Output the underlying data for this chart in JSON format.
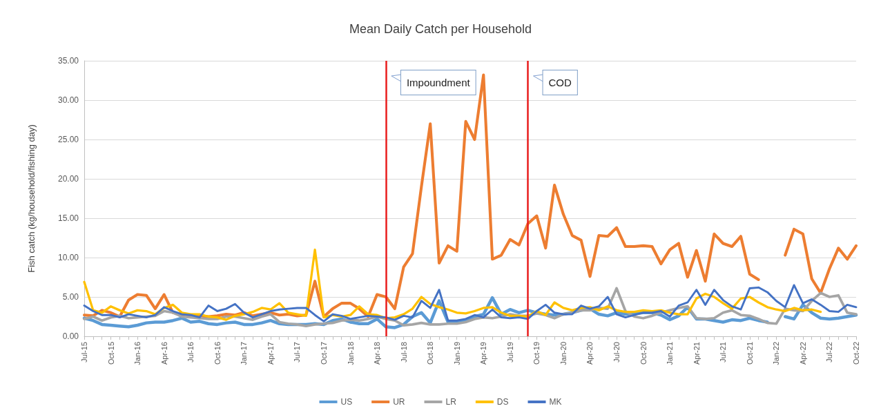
{
  "chart_data": {
    "type": "line",
    "title": "Mean Daily Catch per Household",
    "ylabel": "Fish catch (kg/household/fishing day)",
    "x": [
      "2015-07",
      "2015-08",
      "2015-09",
      "2015-10",
      "2015-11",
      "2015-12",
      "2016-01",
      "2016-02",
      "2016-03",
      "2016-04",
      "2016-05",
      "2016-06",
      "2016-07",
      "2016-08",
      "2016-09",
      "2016-10",
      "2016-11",
      "2016-12",
      "2017-01",
      "2017-02",
      "2017-03",
      "2017-04",
      "2017-05",
      "2017-06",
      "2017-07",
      "2017-08",
      "2017-09",
      "2017-10",
      "2017-11",
      "2017-12",
      "2018-01",
      "2018-02",
      "2018-03",
      "2018-04",
      "2018-05",
      "2018-06",
      "2018-07",
      "2018-08",
      "2018-09",
      "2018-10",
      "2018-11",
      "2018-12",
      "2019-01",
      "2019-02",
      "2019-03",
      "2019-04",
      "2019-05",
      "2019-06",
      "2019-07",
      "2019-08",
      "2019-09",
      "2019-10",
      "2019-11",
      "2019-12",
      "2020-01",
      "2020-02",
      "2020-03",
      "2020-04",
      "2020-05",
      "2020-06",
      "2020-07",
      "2020-08",
      "2020-09",
      "2020-10",
      "2020-11",
      "2020-12",
      "2021-01",
      "2021-02",
      "2021-03",
      "2021-04",
      "2021-05",
      "2021-06",
      "2021-07",
      "2021-08",
      "2021-09",
      "2021-10",
      "2021-11",
      "2021-12",
      "2022-01",
      "2022-02",
      "2022-03",
      "2022-04",
      "2022-05",
      "2022-06",
      "2022-07",
      "2022-08",
      "2022-09",
      "2022-10"
    ],
    "xlim": [
      "2015-07",
      "2022-10"
    ],
    "xticks": [
      {
        "value": "2015-07",
        "label": "Jul-15"
      },
      {
        "value": "2015-10",
        "label": "Oct-15"
      },
      {
        "value": "2016-01",
        "label": "Jan-16"
      },
      {
        "value": "2016-04",
        "label": "Apr-16"
      },
      {
        "value": "2016-07",
        "label": "Jul-16"
      },
      {
        "value": "2016-10",
        "label": "Oct-16"
      },
      {
        "value": "2017-01",
        "label": "Jan-17"
      },
      {
        "value": "2017-04",
        "label": "Apr-17"
      },
      {
        "value": "2017-07",
        "label": "Jul-17"
      },
      {
        "value": "2017-10",
        "label": "Oct-17"
      },
      {
        "value": "2018-01",
        "label": "Jan-18"
      },
      {
        "value": "2018-04",
        "label": "Apr-18"
      },
      {
        "value": "2018-07",
        "label": "Jul-18"
      },
      {
        "value": "2018-10",
        "label": "Oct-18"
      },
      {
        "value": "2019-01",
        "label": "Jan-19"
      },
      {
        "value": "2019-04",
        "label": "Apr-19"
      },
      {
        "value": "2019-07",
        "label": "Jul-19"
      },
      {
        "value": "2019-10",
        "label": "Oct-19"
      },
      {
        "value": "2020-01",
        "label": "Jan-20"
      },
      {
        "value": "2020-04",
        "label": "Apr-20"
      },
      {
        "value": "2020-07",
        "label": "Jul-20"
      },
      {
        "value": "2020-10",
        "label": "Oct-20"
      },
      {
        "value": "2021-01",
        "label": "Jan-21"
      },
      {
        "value": "2021-04",
        "label": "Apr-21"
      },
      {
        "value": "2021-07",
        "label": "Jul-21"
      },
      {
        "value": "2021-10",
        "label": "Oct-21"
      },
      {
        "value": "2022-01",
        "label": "Jan-22"
      },
      {
        "value": "2022-04",
        "label": "Apr-22"
      },
      {
        "value": "2022-07",
        "label": "Jul-22"
      },
      {
        "value": "2022-10",
        "label": "Oct-22"
      }
    ],
    "ylim": [
      0,
      35
    ],
    "yticks": [
      {
        "value": 0,
        "label": "0.00"
      },
      {
        "value": 5,
        "label": "5.00"
      },
      {
        "value": 10,
        "label": "10.00"
      },
      {
        "value": 15,
        "label": "15.00"
      },
      {
        "value": 20,
        "label": "20.00"
      },
      {
        "value": 25,
        "label": "25.00"
      },
      {
        "value": 30,
        "label": "30.00"
      },
      {
        "value": 35,
        "label": "35.00"
      }
    ],
    "series": [
      {
        "name": "US",
        "color": "#5b9bd5",
        "values": [
          2.3,
          2.0,
          1.5,
          1.4,
          1.3,
          1.2,
          1.4,
          1.7,
          1.8,
          1.8,
          2.0,
          2.3,
          1.8,
          1.9,
          1.6,
          1.5,
          1.7,
          1.8,
          1.5,
          1.5,
          1.7,
          2.0,
          1.6,
          1.5,
          1.5,
          1.5,
          1.6,
          1.5,
          2.0,
          2.2,
          1.8,
          1.6,
          1.6,
          2.2,
          1.2,
          1.1,
          1.5,
          2.5,
          3.0,
          1.7,
          4.5,
          1.8,
          1.9,
          2.0,
          2.5,
          2.8,
          4.9,
          2.8,
          3.4,
          3.0,
          3.3,
          3.0,
          2.8,
          2.7,
          2.8,
          3.0,
          3.3,
          3.5,
          2.8,
          2.6,
          3.0,
          2.8,
          2.9,
          3.0,
          3.0,
          2.7,
          2.1,
          2.6,
          3.7,
          2.2,
          2.2,
          2.0,
          1.8,
          2.1,
          2.0,
          2.3,
          2.0,
          1.8,
          null,
          2.5,
          2.2,
          4.0,
          3.0,
          2.3,
          2.2,
          2.3,
          2.5,
          2.7
        ]
      },
      {
        "name": "UR",
        "color": "#ed7d31",
        "values": [
          2.7,
          2.6,
          3.3,
          3.0,
          2.5,
          4.6,
          5.3,
          5.2,
          3.5,
          5.3,
          3.0,
          2.8,
          2.7,
          2.6,
          2.5,
          2.6,
          2.8,
          2.7,
          3.0,
          2.6,
          2.8,
          3.0,
          2.7,
          2.8,
          2.6,
          2.7,
          7.0,
          2.5,
          3.5,
          4.2,
          4.2,
          3.5,
          2.5,
          5.3,
          5.0,
          3.5,
          8.8,
          10.5,
          19.0,
          27.0,
          9.3,
          11.5,
          10.8,
          27.3,
          25.0,
          33.2,
          9.8,
          10.3,
          12.3,
          11.6,
          14.3,
          15.3,
          11.2,
          19.2,
          15.5,
          12.8,
          12.2,
          7.6,
          12.8,
          12.7,
          13.8,
          11.4,
          11.4,
          11.5,
          11.4,
          9.2,
          11.0,
          11.8,
          7.5,
          10.9,
          7.0,
          13.0,
          11.8,
          11.4,
          12.7,
          7.9,
          7.2,
          null,
          null,
          10.3,
          13.6,
          13.0,
          7.3,
          5.5,
          8.6,
          11.2,
          9.8,
          11.5
        ]
      },
      {
        "name": "LR",
        "color": "#a5a5a5",
        "values": [
          2.2,
          2.5,
          2.0,
          2.4,
          2.6,
          2.3,
          2.4,
          2.5,
          2.6,
          3.2,
          3.0,
          2.5,
          2.4,
          2.3,
          2.2,
          2.2,
          2.5,
          2.5,
          2.3,
          2.1,
          2.5,
          2.8,
          1.8,
          1.6,
          1.5,
          1.3,
          1.5,
          1.6,
          1.7,
          2.0,
          2.1,
          2.0,
          2.2,
          2.5,
          2.2,
          2.0,
          1.4,
          1.5,
          1.7,
          1.5,
          1.5,
          1.6,
          1.6,
          1.8,
          2.2,
          2.4,
          2.3,
          2.5,
          2.8,
          2.6,
          2.6,
          2.9,
          2.7,
          2.3,
          2.8,
          3.0,
          3.3,
          3.3,
          3.6,
          3.5,
          6.1,
          3.2,
          2.5,
          2.3,
          2.6,
          3.0,
          3.3,
          3.6,
          3.8,
          2.3,
          2.2,
          2.3,
          3.0,
          3.3,
          2.7,
          2.6,
          2.2,
          1.7,
          1.6,
          3.5,
          3.3,
          3.2,
          4.5,
          5.5,
          5.0,
          5.2,
          3.0,
          2.8
        ]
      },
      {
        "name": "DS",
        "color": "#ffc000",
        "values": [
          6.9,
          3.3,
          3.0,
          3.8,
          3.3,
          2.9,
          3.3,
          3.2,
          2.8,
          3.6,
          4.0,
          3.0,
          2.8,
          2.8,
          2.5,
          2.4,
          2.1,
          2.6,
          2.8,
          3.1,
          3.6,
          3.4,
          4.2,
          3.0,
          2.8,
          2.6,
          11.0,
          2.4,
          2.7,
          2.5,
          2.7,
          3.8,
          2.8,
          2.7,
          2.3,
          2.4,
          2.8,
          3.5,
          5.0,
          4.1,
          3.7,
          3.4,
          3.0,
          2.9,
          3.2,
          3.6,
          3.7,
          3.0,
          2.6,
          2.6,
          2.5,
          3.2,
          2.7,
          4.3,
          3.6,
          3.3,
          3.6,
          3.7,
          3.3,
          3.8,
          3.3,
          3.1,
          3.1,
          3.3,
          3.2,
          3.3,
          3.0,
          2.8,
          2.8,
          4.8,
          5.4,
          5.0,
          4.2,
          3.5,
          4.8,
          5.0,
          4.3,
          3.7,
          3.4,
          3.2,
          3.6,
          3.3,
          3.4,
          3.1,
          null,
          null,
          null,
          null
        ]
      },
      {
        "name": "MK",
        "color": "#4472c4",
        "values": [
          3.9,
          3.2,
          2.7,
          2.7,
          2.4,
          2.8,
          2.6,
          2.4,
          2.7,
          3.7,
          3.2,
          2.8,
          2.7,
          2.4,
          3.9,
          3.2,
          3.5,
          4.1,
          3.0,
          2.4,
          2.8,
          3.2,
          3.4,
          3.5,
          3.6,
          3.6,
          2.7,
          1.9,
          2.8,
          2.6,
          2.2,
          2.4,
          2.6,
          2.5,
          2.4,
          2.1,
          2.6,
          2.4,
          4.5,
          3.6,
          5.9,
          2.0,
          2.0,
          2.2,
          2.7,
          2.4,
          3.4,
          2.4,
          2.3,
          2.4,
          2.2,
          3.2,
          4.0,
          3.0,
          2.8,
          2.8,
          3.9,
          3.5,
          3.8,
          5.0,
          2.8,
          2.4,
          2.7,
          3.0,
          3.0,
          3.2,
          2.5,
          3.9,
          4.3,
          5.9,
          4.0,
          5.9,
          4.6,
          3.8,
          3.4,
          6.1,
          6.2,
          5.6,
          4.5,
          3.7,
          6.5,
          4.2,
          4.7,
          4.0,
          3.2,
          3.1,
          4.0,
          3.7
        ]
      }
    ],
    "ref_lines": [
      {
        "axis": "x",
        "value": "2018-05",
        "label": "Impoundment",
        "color": "#e81c1c"
      },
      {
        "axis": "x",
        "value": "2019-09",
        "label": "COD",
        "color": "#e81c1c"
      }
    ],
    "grid": "y",
    "legend": "bottom",
    "marker": "none",
    "line_style": "solid"
  }
}
